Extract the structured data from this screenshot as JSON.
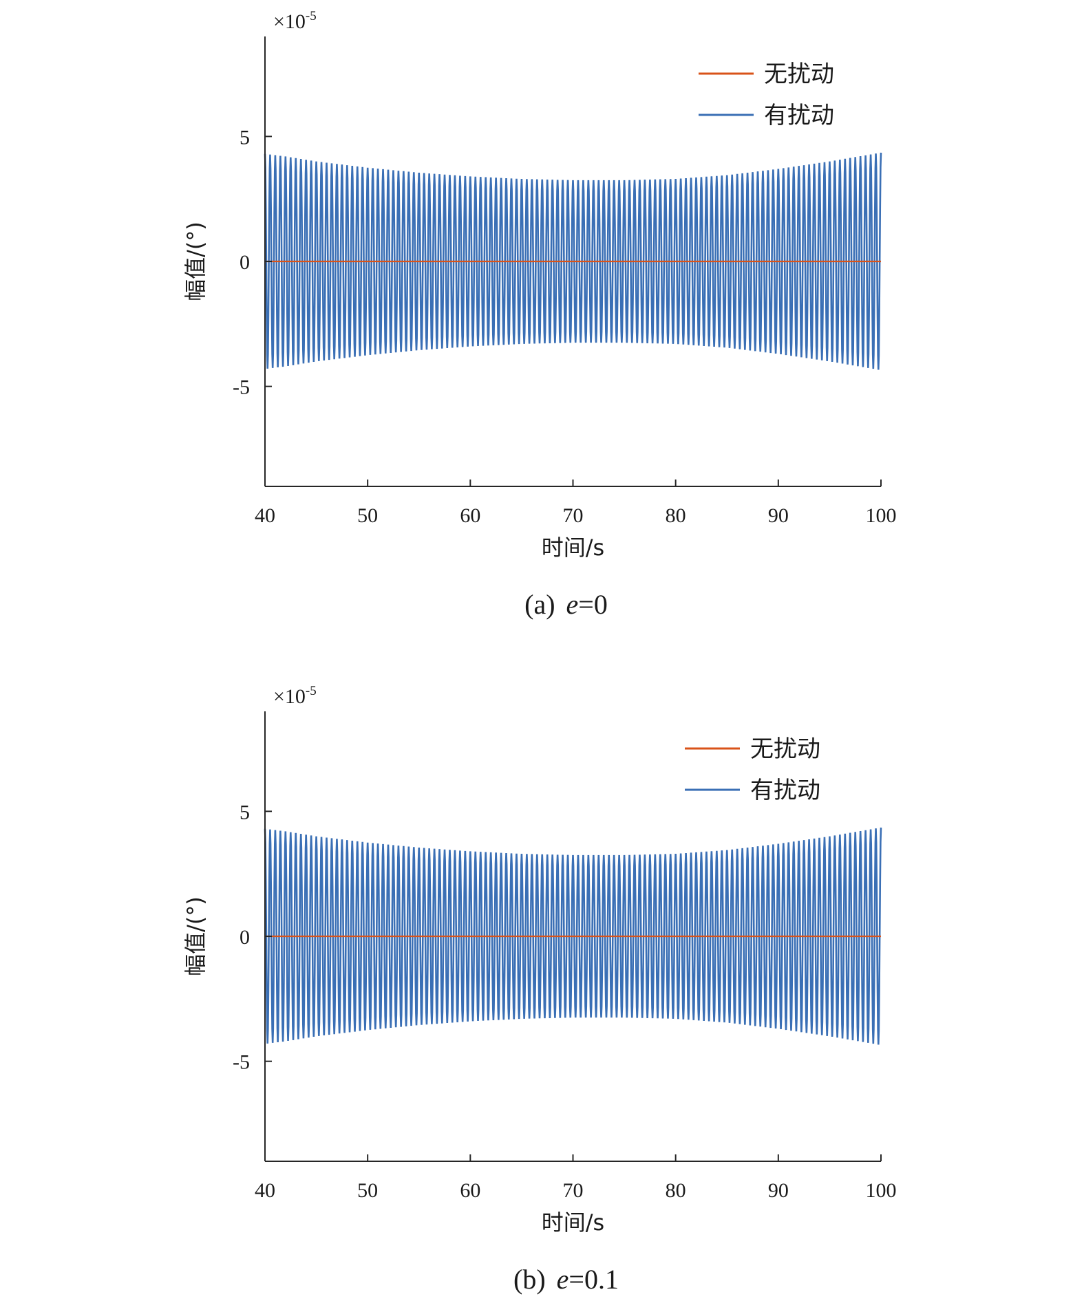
{
  "chart_data": [
    {
      "type": "line",
      "caption_prefix": "(a)",
      "caption_var": "e",
      "caption_eq": "=0",
      "xlabel": "时间/s",
      "ylabel": "幅值/(°)",
      "y_multiplier": "×10",
      "y_multiplier_exp": "-5",
      "xlim": [
        40,
        100
      ],
      "ylim": [
        -9,
        9
      ],
      "xticks": [
        40,
        50,
        60,
        70,
        80,
        90,
        100
      ],
      "yticks": [
        -5,
        0,
        5
      ],
      "grid": false,
      "legend_position": "top-right",
      "series": [
        {
          "name": "无扰动",
          "color": "#d95319",
          "x": [
            40,
            100
          ],
          "y": [
            0,
            0
          ]
        },
        {
          "name": "有扰动",
          "color": "#3a6fb5",
          "envelope": {
            "x": [
              40,
              42,
              45,
              50,
              55,
              60,
              65,
              70,
              75,
              80,
              85,
              90,
              95,
              100
            ],
            "y": [
              4.3,
              4.2,
              4.0,
              3.75,
              3.55,
              3.4,
              3.3,
              3.25,
              3.25,
              3.3,
              3.45,
              3.7,
              4.0,
              4.35
            ]
          },
          "oscillation_period": 0.5
        }
      ]
    },
    {
      "type": "line",
      "caption_prefix": "(b)",
      "caption_var": "e",
      "caption_eq": "=0.1",
      "xlabel": "时间/s",
      "ylabel": "幅值/(°)",
      "y_multiplier": "×10",
      "y_multiplier_exp": "-5",
      "xlim": [
        40,
        100
      ],
      "ylim": [
        -9,
        9
      ],
      "xticks": [
        40,
        50,
        60,
        70,
        80,
        90,
        100
      ],
      "yticks": [
        -5,
        0,
        5
      ],
      "grid": false,
      "legend_position": "top-right",
      "series": [
        {
          "name": "无扰动",
          "color": "#d95319",
          "x": [
            40,
            100
          ],
          "y": [
            0,
            0
          ]
        },
        {
          "name": "有扰动",
          "color": "#3a6fb5",
          "envelope": {
            "x": [
              40,
              42,
              45,
              50,
              55,
              60,
              65,
              70,
              75,
              80,
              85,
              90,
              95,
              100
            ],
            "y": [
              4.3,
              4.2,
              4.0,
              3.75,
              3.55,
              3.4,
              3.3,
              3.25,
              3.25,
              3.3,
              3.45,
              3.7,
              4.0,
              4.35
            ]
          },
          "oscillation_period": 0.5
        }
      ]
    }
  ]
}
